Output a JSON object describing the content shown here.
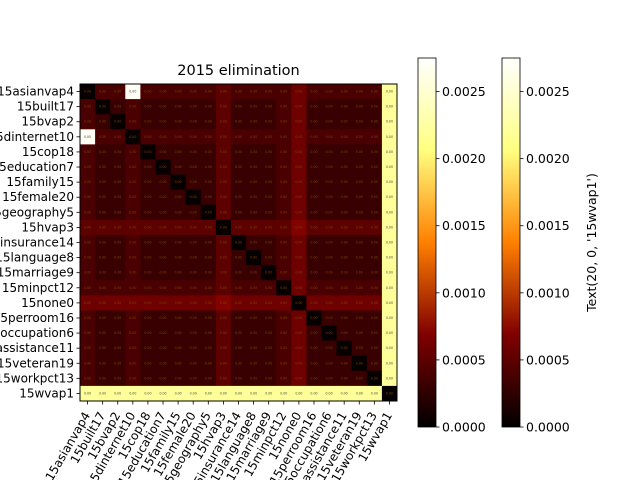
{
  "chart_data": {
    "type": "heatmap",
    "title": "2015 elimination",
    "labels": [
      "15asianvap4",
      "15built17",
      "15bvap2",
      "15dinternet10",
      "15cop18",
      "15education7",
      "15family15",
      "15female20",
      "15geography5",
      "15hvap3",
      "15insurance14",
      "15language8",
      "15marriage9",
      "15minpct12",
      "15none0",
      "15perroom16",
      "15occupation6",
      "15assistance11",
      "15veteran19",
      "15workpct13",
      "15wvap1"
    ],
    "row_values": [
      [
        3e-05,
        0.0004,
        0.0004,
        0.0027,
        0.0004,
        0.0004,
        0.0004,
        0.0004,
        0.0004,
        0.0005,
        0.0004,
        0.0004,
        0.0004,
        0.0004,
        0.0006,
        0.0004,
        0.0004,
        0.0004,
        0.0004,
        0.0004,
        0.0022
      ],
      [
        0.0004,
        3e-05,
        0.0003,
        0.0004,
        0.0003,
        0.0003,
        0.0003,
        0.0003,
        0.0003,
        0.0005,
        0.0003,
        0.0003,
        0.0003,
        0.0004,
        0.0006,
        0.0003,
        0.0003,
        0.0003,
        0.0003,
        0.0003,
        0.0022
      ],
      [
        0.0004,
        0.0003,
        3e-05,
        0.0004,
        0.0003,
        0.0003,
        0.0003,
        0.0003,
        0.0003,
        0.0005,
        0.0003,
        0.0003,
        0.0003,
        0.0004,
        0.0006,
        0.0003,
        0.0003,
        0.0003,
        0.0003,
        0.0003,
        0.0022
      ],
      [
        0.0027,
        0.0004,
        0.0004,
        3e-05,
        0.0004,
        0.0004,
        0.0004,
        0.0004,
        0.0004,
        0.0005,
        0.0004,
        0.0004,
        0.0004,
        0.0004,
        0.0006,
        0.0004,
        0.0004,
        0.0004,
        0.0004,
        0.0004,
        0.0022
      ],
      [
        0.0004,
        0.0003,
        0.0003,
        0.0004,
        3e-05,
        0.0003,
        0.0003,
        0.0003,
        0.0003,
        0.0005,
        0.0003,
        0.0003,
        0.0003,
        0.0004,
        0.0006,
        0.0003,
        0.0003,
        0.0003,
        0.0003,
        0.0003,
        0.0022
      ],
      [
        0.0004,
        0.0003,
        0.0003,
        0.0004,
        0.0003,
        3e-05,
        0.0003,
        0.0003,
        0.0003,
        0.0005,
        0.0003,
        0.0003,
        0.0003,
        0.0004,
        0.0006,
        0.0003,
        0.0003,
        0.0003,
        0.0003,
        0.0003,
        0.0022
      ],
      [
        0.0004,
        0.0003,
        0.0003,
        0.0004,
        0.0003,
        0.0003,
        3e-05,
        0.0003,
        0.0003,
        0.0005,
        0.0003,
        0.0003,
        0.0003,
        0.0004,
        0.0006,
        0.0003,
        0.0003,
        0.0003,
        0.0003,
        0.0003,
        0.0022
      ],
      [
        0.0004,
        0.0003,
        0.0003,
        0.0004,
        0.0003,
        0.0003,
        0.0003,
        3e-05,
        0.0003,
        0.0005,
        0.0003,
        0.0003,
        0.0003,
        0.0004,
        0.0006,
        0.0003,
        0.0003,
        0.0003,
        0.0003,
        0.0003,
        0.0022
      ],
      [
        0.0004,
        0.0003,
        0.0003,
        0.0004,
        0.0003,
        0.0003,
        0.0003,
        0.0003,
        3e-05,
        0.0005,
        0.0003,
        0.0003,
        0.0003,
        0.0004,
        0.0006,
        0.0003,
        0.0003,
        0.0003,
        0.0003,
        0.0003,
        0.0022
      ],
      [
        0.0005,
        0.0005,
        0.0005,
        0.0005,
        0.0005,
        0.0005,
        0.0005,
        0.0005,
        0.0005,
        3e-05,
        0.0005,
        0.0005,
        0.0005,
        0.0005,
        0.0007,
        0.0005,
        0.0005,
        0.0005,
        0.0005,
        0.0005,
        0.0022
      ],
      [
        0.0004,
        0.0003,
        0.0003,
        0.0004,
        0.0003,
        0.0003,
        0.0003,
        0.0003,
        0.0003,
        0.0005,
        3e-05,
        0.0003,
        0.0003,
        0.0004,
        0.0006,
        0.0003,
        0.0003,
        0.0003,
        0.0003,
        0.0003,
        0.0022
      ],
      [
        0.0004,
        0.0003,
        0.0003,
        0.0004,
        0.0003,
        0.0003,
        0.0003,
        0.0003,
        0.0003,
        0.0005,
        0.0003,
        3e-05,
        0.0003,
        0.0004,
        0.0006,
        0.0003,
        0.0003,
        0.0003,
        0.0003,
        0.0003,
        0.0022
      ],
      [
        0.0004,
        0.0003,
        0.0003,
        0.0004,
        0.0003,
        0.0003,
        0.0003,
        0.0003,
        0.0003,
        0.0005,
        0.0003,
        0.0003,
        3e-05,
        0.0004,
        0.0006,
        0.0003,
        0.0003,
        0.0003,
        0.0003,
        0.0003,
        0.0022
      ],
      [
        0.0004,
        0.0004,
        0.0004,
        0.0004,
        0.0004,
        0.0004,
        0.0004,
        0.0004,
        0.0004,
        0.0005,
        0.0004,
        0.0004,
        0.0004,
        3e-05,
        0.0006,
        0.0004,
        0.0004,
        0.0004,
        0.0004,
        0.0004,
        0.0022
      ],
      [
        0.0006,
        0.0006,
        0.0006,
        0.0006,
        0.0006,
        0.0006,
        0.0006,
        0.0006,
        0.0006,
        0.0007,
        0.0006,
        0.0006,
        0.0006,
        0.0006,
        3e-05,
        0.0006,
        0.0006,
        0.0006,
        0.0006,
        0.0006,
        0.0022
      ],
      [
        0.0004,
        0.0003,
        0.0003,
        0.0004,
        0.0003,
        0.0003,
        0.0003,
        0.0003,
        0.0003,
        0.0005,
        0.0003,
        0.0003,
        0.0003,
        0.0004,
        0.0006,
        3e-05,
        0.0003,
        0.0003,
        0.0003,
        0.0003,
        0.0022
      ],
      [
        0.0004,
        0.0003,
        0.0003,
        0.0004,
        0.0003,
        0.0003,
        0.0003,
        0.0003,
        0.0003,
        0.0005,
        0.0003,
        0.0003,
        0.0003,
        0.0004,
        0.0006,
        0.0003,
        3e-05,
        0.0003,
        0.0003,
        0.0003,
        0.0022
      ],
      [
        0.0004,
        0.0003,
        0.0003,
        0.0004,
        0.0003,
        0.0003,
        0.0003,
        0.0003,
        0.0003,
        0.0005,
        0.0003,
        0.0003,
        0.0003,
        0.0004,
        0.0006,
        0.0003,
        0.0003,
        3e-05,
        0.0003,
        0.0003,
        0.0022
      ],
      [
        0.0004,
        0.0003,
        0.0003,
        0.0004,
        0.0003,
        0.0003,
        0.0003,
        0.0003,
        0.0003,
        0.0005,
        0.0003,
        0.0003,
        0.0003,
        0.0004,
        0.0006,
        0.0003,
        0.0003,
        0.0003,
        3e-05,
        0.0003,
        0.0022
      ],
      [
        0.0004,
        0.0003,
        0.0003,
        0.0004,
        0.0003,
        0.0003,
        0.0003,
        0.0003,
        0.0003,
        0.0005,
        0.0003,
        0.0003,
        0.0003,
        0.0004,
        0.0006,
        0.0003,
        0.0003,
        0.0003,
        0.0003,
        3e-05,
        0.0022
      ],
      [
        0.0022,
        0.0022,
        0.0022,
        0.0022,
        0.0022,
        0.0022,
        0.0022,
        0.0022,
        0.0022,
        0.0022,
        0.0022,
        0.0022,
        0.0022,
        0.0022,
        0.0022,
        0.0022,
        0.0022,
        0.0022,
        0.0022,
        0.0022,
        3e-05
      ]
    ],
    "cell_text": "0.00",
    "vmin": 0,
    "vmax": 0.00275,
    "colormap": "afmhot",
    "colorbar_ticks": [
      "0.0000",
      "0.0005",
      "0.0010",
      "0.0015",
      "0.0020",
      "0.0025"
    ],
    "colorbar_tick_values": [
      0,
      0.0005,
      0.001,
      0.0015,
      0.002,
      0.0025
    ],
    "colorbar_label": "Text(20, 0, '15wvap1')",
    "colorbar_count": 2,
    "grid": false,
    "x_tick_rotation_deg": 60
  }
}
